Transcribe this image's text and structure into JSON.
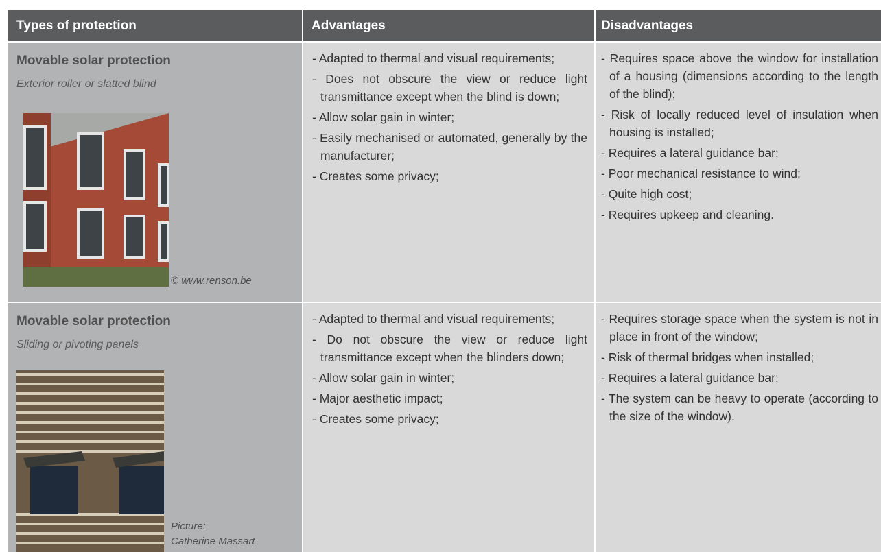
{
  "table": {
    "header": [
      "Types of protection",
      "Advantages",
      "Disadvantages"
    ],
    "rows": [
      {
        "title": "Movable solar protection",
        "subtitle": "Exterior roller or slatted blind",
        "credit": [
          "© www.renson.be"
        ],
        "advantages": [
          "- Adapted to thermal and visual requirements;",
          "- Does not obscure the view or reduce light transmittance except when the blind is down;",
          "- Allow solar gain in winter;",
          "- Easily mechanised or automated, generally by the manufacturer;",
          "- Creates some privacy;"
        ],
        "disadvantages": [
          "- Requires space above the window for installation of a housing (dimensions according to the length of the blind);",
          "- Risk of locally reduced level of insulation when housing is installed;",
          "- Requires a lateral guidance bar;",
          "- Poor mechanical resistance to wind;",
          "- Quite high cost;",
          "- Requires upkeep and cleaning."
        ]
      },
      {
        "title": "Movable solar protection",
        "subtitle": "Sliding or pivoting panels",
        "credit": [
          "Picture:",
          "Catherine Massart"
        ],
        "advantages": [
          "- Adapted to thermal and visual requirements;",
          "- Do not obscure the view or reduce light transmittance except when the blinders down;",
          "- Allow solar gain in winter;",
          "- Major aesthetic impact;",
          "- Creates some privacy;"
        ],
        "disadvantages": [
          "- Requires storage space when the system is not in place in front of the window;",
          "- Risk of thermal bridges when installed;",
          "- Requires a lateral guidance bar;",
          "- The system can be heavy to operate (according to the size of the window)."
        ]
      }
    ]
  }
}
